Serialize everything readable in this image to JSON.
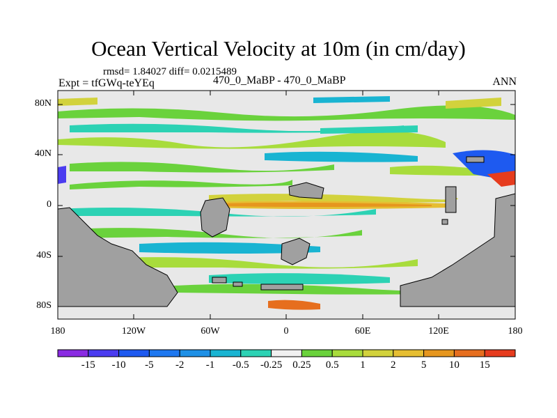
{
  "title": "Ocean Vertical Velocity at 10m (in cm/day)",
  "stats_text": "rmsd= 1.84027 diff= 0.0215489",
  "expt_text": "Expt = tfGWq-teYEq",
  "case_text": "470_0_MaBP - 470_0_MaBP",
  "season": "ANN",
  "lat_labels": [
    "80N",
    "40N",
    "0",
    "40S",
    "80S"
  ],
  "lon_labels": [
    "180",
    "120W",
    "60W",
    "0",
    "60E",
    "120E",
    "180"
  ],
  "colorbar": {
    "labels": [
      "-15",
      "-10",
      "-5",
      "-2",
      "-1",
      "-0.5",
      "-0.25",
      "0.25",
      "0.5",
      "1",
      "2",
      "5",
      "10",
      "15"
    ],
    "colors": [
      "#8a2be2",
      "#4b3cf0",
      "#1e5af0",
      "#1e90e6",
      "#19b4d2",
      "#2cd2b4",
      "#f0f0f0",
      "#6ad23c",
      "#a8dc3c",
      "#d2d23c",
      "#e6be32",
      "#e6961e",
      "#e66e1e",
      "#e63c1e"
    ]
  },
  "colors": {
    "land": "#a0a0a0",
    "ocean_neutral": "#e8e8e8"
  }
}
